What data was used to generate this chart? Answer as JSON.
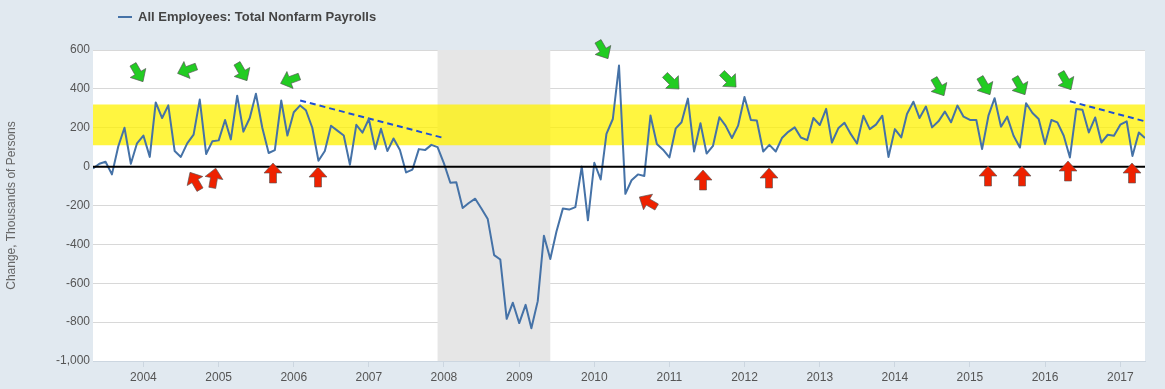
{
  "chart_data": {
    "type": "line",
    "ylabel": "Change, Thousands of Persons",
    "legend": "top left",
    "grid": "y",
    "marker": "none",
    "x": [
      "2003-05",
      "2003-06",
      "2003-07",
      "2003-08",
      "2003-09",
      "2003-10",
      "2003-11",
      "2003-12",
      "2004-01",
      "2004-02",
      "2004-03",
      "2004-04",
      "2004-05",
      "2004-06",
      "2004-07",
      "2004-08",
      "2004-09",
      "2004-10",
      "2004-11",
      "2004-12",
      "2005-01",
      "2005-02",
      "2005-03",
      "2005-04",
      "2005-05",
      "2005-06",
      "2005-07",
      "2005-08",
      "2005-09",
      "2005-10",
      "2005-11",
      "2005-12",
      "2006-01",
      "2006-02",
      "2006-03",
      "2006-04",
      "2006-05",
      "2006-06",
      "2006-07",
      "2006-08",
      "2006-09",
      "2006-10",
      "2006-11",
      "2006-12",
      "2007-01",
      "2007-02",
      "2007-03",
      "2007-04",
      "2007-05",
      "2007-06",
      "2007-07",
      "2007-08",
      "2007-09",
      "2007-10",
      "2007-11",
      "2007-12",
      "2008-01",
      "2008-02",
      "2008-03",
      "2008-04",
      "2008-05",
      "2008-06",
      "2008-07",
      "2008-08",
      "2008-09",
      "2008-10",
      "2008-11",
      "2008-12",
      "2009-01",
      "2009-02",
      "2009-03",
      "2009-04",
      "2009-05",
      "2009-06",
      "2009-07",
      "2009-08",
      "2009-09",
      "2009-10",
      "2009-11",
      "2009-12",
      "2010-01",
      "2010-02",
      "2010-03",
      "2010-04",
      "2010-05",
      "2010-06",
      "2010-07",
      "2010-08",
      "2010-09",
      "2010-10",
      "2010-11",
      "2010-12",
      "2011-01",
      "2011-02",
      "2011-03",
      "2011-04",
      "2011-05",
      "2011-06",
      "2011-07",
      "2011-08",
      "2011-09",
      "2011-10",
      "2011-11",
      "2011-12",
      "2012-01",
      "2012-02",
      "2012-03",
      "2012-04",
      "2012-05",
      "2012-06",
      "2012-07",
      "2012-08",
      "2012-09",
      "2012-10",
      "2012-11",
      "2012-12",
      "2013-01",
      "2013-02",
      "2013-03",
      "2013-04",
      "2013-05",
      "2013-06",
      "2013-07",
      "2013-08",
      "2013-09",
      "2013-10",
      "2013-11",
      "2013-12",
      "2014-01",
      "2014-02",
      "2014-03",
      "2014-04",
      "2014-05",
      "2014-06",
      "2014-07",
      "2014-08",
      "2014-09",
      "2014-10",
      "2014-11",
      "2014-12",
      "2015-01",
      "2015-02",
      "2015-03",
      "2015-04",
      "2015-05",
      "2015-06",
      "2015-07",
      "2015-08",
      "2015-09",
      "2015-10",
      "2015-11",
      "2015-12",
      "2016-01",
      "2016-02",
      "2016-03",
      "2016-04",
      "2016-05",
      "2016-06",
      "2016-07",
      "2016-08",
      "2016-09",
      "2016-10",
      "2016-11",
      "2016-12",
      "2017-01",
      "2017-02",
      "2017-03",
      "2017-04",
      "2017-05"
    ],
    "series": [
      {
        "name": "All Employees: Total Nonfarm Payrolls",
        "color": "#4572a7",
        "values": [
          -10,
          15,
          25,
          -40,
          105,
          200,
          15,
          120,
          160,
          50,
          330,
          250,
          315,
          80,
          50,
          120,
          165,
          345,
          65,
          130,
          135,
          240,
          140,
          365,
          180,
          250,
          375,
          200,
          70,
          85,
          340,
          160,
          280,
          315,
          290,
          200,
          30,
          80,
          210,
          185,
          160,
          10,
          215,
          175,
          245,
          90,
          195,
          80,
          145,
          85,
          -30,
          -15,
          90,
          85,
          112,
          100,
          17,
          -83,
          -80,
          -213,
          -187,
          -165,
          -215,
          -270,
          -455,
          -478,
          -783,
          -700,
          -805,
          -711,
          -832,
          -692,
          -356,
          -475,
          -334,
          -216,
          -221,
          -208,
          0,
          -276,
          20,
          -66,
          168,
          245,
          520,
          -140,
          -70,
          -40,
          -48,
          263,
          116,
          87,
          47,
          197,
          228,
          350,
          78,
          223,
          67,
          107,
          254,
          211,
          147,
          211,
          358,
          240,
          237,
          78,
          112,
          78,
          147,
          179,
          202,
          150,
          136,
          250,
          214,
          297,
          124,
          197,
          226,
          167,
          119,
          262,
          193,
          216,
          262,
          50,
          193,
          150,
          271,
          334,
          250,
          309,
          202,
          233,
          283,
          228,
          314,
          257,
          240,
          240,
          90,
          262,
          352,
          205,
          257,
          159,
          98,
          326,
          276,
          245,
          116,
          240,
          228,
          159,
          47,
          297,
          293,
          176,
          253,
          124,
          164,
          159,
          216,
          233,
          55,
          176,
          147
        ]
      },
      {
        "type": "line",
        "color": "#1f4fd6",
        "line_style": "dashed",
        "x": [
          "2006-02",
          "2008-01"
        ],
        "values": [
          340,
          147
        ]
      },
      {
        "type": "line",
        "color": "#1f4fd6",
        "line_style": "dashed",
        "x": [
          "2016-05",
          "2017-05"
        ],
        "values": [
          336,
          233
        ]
      }
    ],
    "xlim": [
      "2003-05",
      "2017-05"
    ],
    "xticks": [
      "2004",
      "2005",
      "2006",
      "2007",
      "2008",
      "2009",
      "2010",
      "2011",
      "2012",
      "2013",
      "2014",
      "2015",
      "2016",
      "2017"
    ],
    "ylim": [
      -1000,
      600
    ],
    "yticks": [
      {
        "value": -1000,
        "label": "-1,000"
      },
      -800,
      -600,
      -400,
      -200,
      0,
      200,
      400,
      600
    ],
    "ref_lines": [
      {
        "axis": "y",
        "value": 0,
        "color": "#000000"
      }
    ],
    "bands": [
      {
        "axis": "x",
        "from": "2007-12",
        "to": "2009-06",
        "color": "#e6e6e6"
      },
      {
        "axis": "y",
        "from": 110,
        "to": 320,
        "color": "#fff200"
      }
    ]
  }
}
